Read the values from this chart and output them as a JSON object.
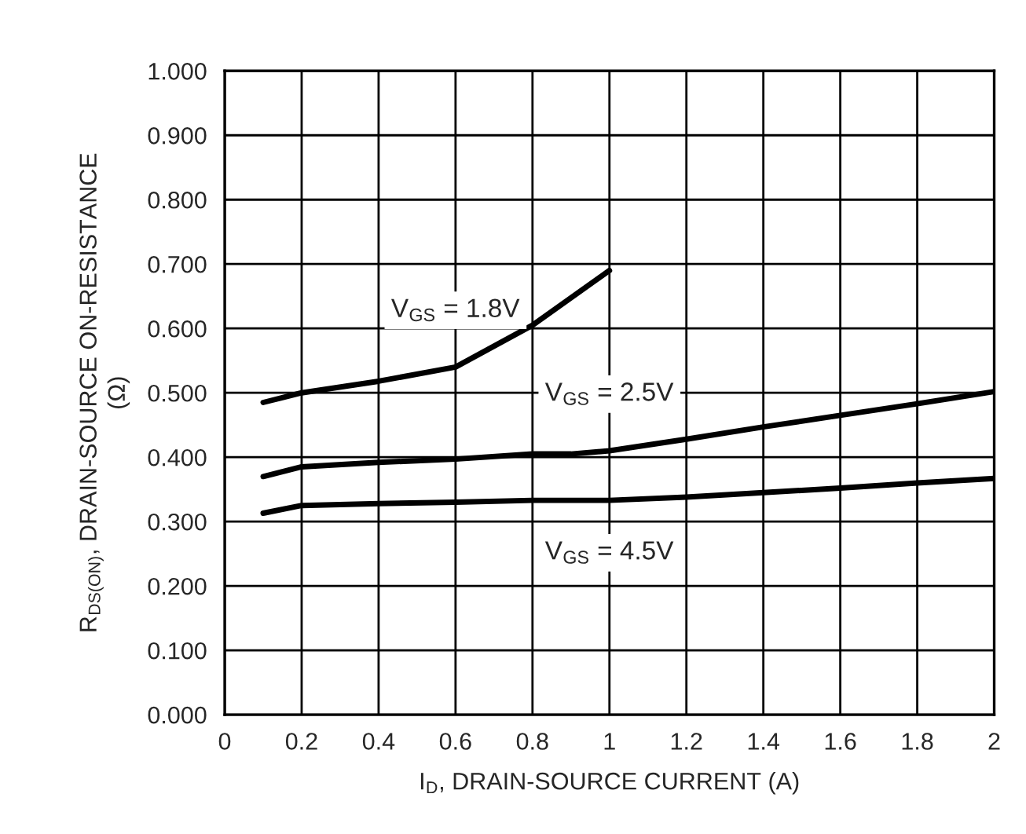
{
  "chart_data": {
    "type": "line",
    "xlabel": "I$_{D}$, DRAIN-SOURCE CURRENT (A)",
    "ylabel": "R$_{DS(ON)}$, DRAIN-SOURCE ON-RESISTANCE\n(Ω)",
    "xlim": [
      0,
      2
    ],
    "ylim": [
      0,
      1
    ],
    "xticks": [
      0,
      0.2,
      0.4,
      0.6,
      0.8,
      1,
      1.2,
      1.4,
      1.6,
      1.8,
      2
    ],
    "yticks": [
      {
        "value": 0,
        "label": "0.000"
      },
      {
        "value": 0.1,
        "label": "0.100"
      },
      {
        "value": 0.2,
        "label": "0.200"
      },
      {
        "value": 0.3,
        "label": "0.300"
      },
      {
        "value": 0.4,
        "label": "0.400"
      },
      {
        "value": 0.5,
        "label": "0.500"
      },
      {
        "value": 0.6,
        "label": "0.600"
      },
      {
        "value": 0.7,
        "label": "0.700"
      },
      {
        "value": 0.8,
        "label": "0.800"
      },
      {
        "value": 0.9,
        "label": "0.900"
      },
      {
        "value": 1,
        "label": "1.000"
      }
    ],
    "grid": true,
    "legend": false,
    "marker": "none",
    "line_style": "solid",
    "series": [
      {
        "name": "V$_{GS}$ = 1.8V",
        "color": "#000000",
        "x": [
          0.1,
          0.2,
          0.4,
          0.6,
          0.8,
          1.0
        ],
        "values": [
          0.485,
          0.5,
          0.518,
          0.54,
          0.605,
          0.69
        ]
      },
      {
        "name": "V$_{GS}$ = 2.5V",
        "color": "#000000",
        "x": [
          0.1,
          0.2,
          0.4,
          0.6,
          0.8,
          0.9,
          1.0,
          1.2,
          1.4,
          1.6,
          1.8,
          2.0
        ],
        "values": [
          0.37,
          0.385,
          0.392,
          0.397,
          0.405,
          0.405,
          0.41,
          0.428,
          0.447,
          0.465,
          0.483,
          0.502
        ]
      },
      {
        "name": "V$_{GS}$ = 4.5V",
        "color": "#000000",
        "x": [
          0.1,
          0.2,
          0.4,
          0.6,
          0.8,
          1.0,
          1.2,
          1.4,
          1.6,
          1.8,
          2.0
        ],
        "values": [
          0.313,
          0.325,
          0.328,
          0.33,
          0.333,
          0.333,
          0.338,
          0.345,
          0.352,
          0.36,
          0.367
        ]
      }
    ]
  }
}
